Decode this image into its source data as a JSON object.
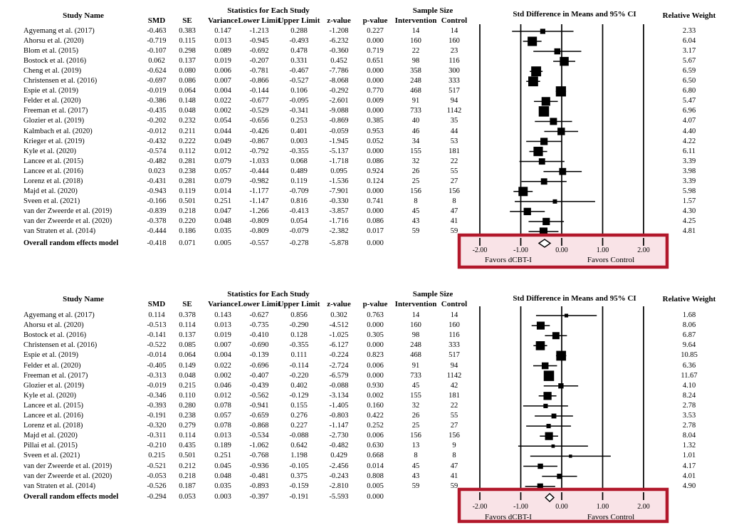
{
  "chart_data": [
    {
      "type": "scatter",
      "subtype": "forest-plot",
      "headers": {
        "study": "Study Name",
        "stats_group": "Statistics for Each Study",
        "sample_group": "Sample Size",
        "plot": "Std Difference in Means and 95% CI",
        "weight": "Relative Weight"
      },
      "columns": [
        "SMD",
        "SE",
        "Variance",
        "Lower Limit",
        "Upper Limit",
        "z-value",
        "p-value"
      ],
      "sample_columns": [
        "Intervention",
        "Control"
      ],
      "axis": {
        "range": [
          -2,
          2
        ],
        "ticks": [
          "-2.00",
          "-1.00",
          "0.00",
          "1.00",
          "2.00"
        ],
        "favors_left": "Favors dCBT-I",
        "favors_right": "Favors Control",
        "grid": true
      },
      "row_fields": [
        "study",
        "smd",
        "se",
        "variance",
        "lower",
        "upper",
        "z",
        "p",
        "intervention",
        "control",
        "weight"
      ],
      "rows": [
        [
          "Agyemang et al. (2017)",
          "-0.463",
          "0.383",
          "0.147",
          "-1.213",
          "0.288",
          "-1.208",
          "0.227",
          "14",
          "14",
          "2.33"
        ],
        [
          "Ahorsu et al. (2020)",
          "-0.719",
          "0.115",
          "0.013",
          "-0.945",
          "-0.493",
          "-6.232",
          "0.000",
          "160",
          "160",
          "6.04"
        ],
        [
          "Blom et al. (2015)",
          "-0.107",
          "0.298",
          "0.089",
          "-0.692",
          "0.478",
          "-0.360",
          "0.719",
          "22",
          "23",
          "3.17"
        ],
        [
          "Bostock et al. (2016)",
          "0.062",
          "0.137",
          "0.019",
          "-0.207",
          "0.331",
          "0.452",
          "0.651",
          "98",
          "116",
          "5.67"
        ],
        [
          "Cheng et al. (2019)",
          "-0.624",
          "0.080",
          "0.006",
          "-0.781",
          "-0.467",
          "-7.786",
          "0.000",
          "358",
          "300",
          "6.59"
        ],
        [
          "Christensen et al. (2016)",
          "-0.697",
          "0.086",
          "0.007",
          "-0.866",
          "-0.527",
          "-8.068",
          "0.000",
          "248",
          "333",
          "6.50"
        ],
        [
          "Espie et al. (2019)",
          "-0.019",
          "0.064",
          "0.004",
          "-0.144",
          "0.106",
          "-0.292",
          "0.770",
          "468",
          "517",
          "6.80"
        ],
        [
          "Felder et al. (2020)",
          "-0.386",
          "0.148",
          "0.022",
          "-0.677",
          "-0.095",
          "-2.601",
          "0.009",
          "91",
          "94",
          "5.47"
        ],
        [
          "Freeman et al. (2017)",
          "-0.435",
          "0.048",
          "0.002",
          "-0.529",
          "-0.341",
          "-9.088",
          "0.000",
          "733",
          "1142",
          "6.96"
        ],
        [
          "Glozier et al. (2019)",
          "-0.202",
          "0.232",
          "0.054",
          "-0.656",
          "0.253",
          "-0.869",
          "0.385",
          "40",
          "35",
          "4.07"
        ],
        [
          "Kalmbach et al. (2020)",
          "-0.012",
          "0.211",
          "0.044",
          "-0.426",
          "0.401",
          "-0.059",
          "0.953",
          "46",
          "44",
          "4.40"
        ],
        [
          "Krieger et al. (2019)",
          "-0.432",
          "0.222",
          "0.049",
          "-0.867",
          "0.003",
          "-1.945",
          "0.052",
          "34",
          "53",
          "4.22"
        ],
        [
          "Kyle et al. (2020)",
          "-0.574",
          "0.112",
          "0.012",
          "-0.792",
          "-0.355",
          "-5.137",
          "0.000",
          "155",
          "181",
          "6.11"
        ],
        [
          "Lancee et al. (2015)",
          "-0.482",
          "0.281",
          "0.079",
          "-1.033",
          "0.068",
          "-1.718",
          "0.086",
          "32",
          "22",
          "3.39"
        ],
        [
          "Lancee et al. (2016)",
          "0.023",
          "0.238",
          "0.057",
          "-0.444",
          "0.489",
          "0.095",
          "0.924",
          "26",
          "55",
          "3.98"
        ],
        [
          "Lorenz et al. (2018)",
          "-0.431",
          "0.281",
          "0.079",
          "-0.982",
          "0.119",
          "-1.536",
          "0.124",
          "25",
          "27",
          "3.39"
        ],
        [
          "Majd et al. (2020)",
          "-0.943",
          "0.119",
          "0.014",
          "-1.177",
          "-0.709",
          "-7.901",
          "0.000",
          "156",
          "156",
          "5.98"
        ],
        [
          "Sveen et al. (2021)",
          "-0.166",
          "0.501",
          "0.251",
          "-1.147",
          "0.816",
          "-0.330",
          "0.741",
          "8",
          "8",
          "1.57"
        ],
        [
          "van der Zweerde et al. (2019)",
          "-0.839",
          "0.218",
          "0.047",
          "-1.266",
          "-0.413",
          "-3.857",
          "0.000",
          "45",
          "47",
          "4.30"
        ],
        [
          "van der Zweerde et al. (2020)",
          "-0.378",
          "0.220",
          "0.048",
          "-0.809",
          "0.054",
          "-1.716",
          "0.086",
          "43",
          "41",
          "4.25"
        ],
        [
          "van Straten et al. (2014)",
          "-0.444",
          "0.186",
          "0.035",
          "-0.809",
          "-0.079",
          "-2.382",
          "0.017",
          "59",
          "59",
          "4.81"
        ]
      ],
      "overall": [
        "Overall random effects model",
        "-0.418",
        "0.071",
        "0.005",
        "-0.557",
        "-0.278",
        "-5.878",
        "0.000"
      ]
    },
    {
      "type": "scatter",
      "subtype": "forest-plot",
      "headers": {
        "study": "Study Name",
        "stats_group": "Statistics for Each Study",
        "sample_group": "Sample Size",
        "plot": "Std Difference in Means and 95% CI",
        "weight": "Relative Weight"
      },
      "columns": [
        "SMD",
        "SE",
        "Variance",
        "Lower Limit",
        "Upper Limit",
        "z-value",
        "p-value"
      ],
      "sample_columns": [
        "Intervention",
        "Control"
      ],
      "axis": {
        "range": [
          -2,
          2
        ],
        "ticks": [
          "-2.00",
          "-1.00",
          "0.00",
          "1.00",
          "2.00"
        ],
        "favors_left": "Favors dCBT-I",
        "favors_right": "Favors Control",
        "grid": true
      },
      "row_fields": [
        "study",
        "smd",
        "se",
        "variance",
        "lower",
        "upper",
        "z",
        "p",
        "intervention",
        "control",
        "weight"
      ],
      "rows": [
        [
          "Agyemang et al. (2017)",
          "0.114",
          "0.378",
          "0.143",
          "-0.627",
          "0.856",
          "0.302",
          "0.763",
          "14",
          "14",
          "1.68"
        ],
        [
          "Ahorsu et al. (2020)",
          "-0.513",
          "0.114",
          "0.013",
          "-0.735",
          "-0.290",
          "-4.512",
          "0.000",
          "160",
          "160",
          "8.06"
        ],
        [
          "Bostock et al. (2016)",
          "-0.141",
          "0.137",
          "0.019",
          "-0.410",
          "0.128",
          "-1.025",
          "0.305",
          "98",
          "116",
          "6.87"
        ],
        [
          "Christensen et al. (2016)",
          "-0.522",
          "0.085",
          "0.007",
          "-0.690",
          "-0.355",
          "-6.127",
          "0.000",
          "248",
          "333",
          "9.64"
        ],
        [
          "Espie et al. (2019)",
          "-0.014",
          "0.064",
          "0.004",
          "-0.139",
          "0.111",
          "-0.224",
          "0.823",
          "468",
          "517",
          "10.85"
        ],
        [
          "Felder et al. (2020)",
          "-0.405",
          "0.149",
          "0.022",
          "-0.696",
          "-0.114",
          "-2.724",
          "0.006",
          "91",
          "94",
          "6.36"
        ],
        [
          "Freeman et al. (2017)",
          "-0.313",
          "0.048",
          "0.002",
          "-0.407",
          "-0.220",
          "-6.579",
          "0.000",
          "733",
          "1142",
          "11.67"
        ],
        [
          "Glozier et al. (2019)",
          "-0.019",
          "0.215",
          "0.046",
          "-0.439",
          "0.402",
          "-0.088",
          "0.930",
          "45",
          "42",
          "4.10"
        ],
        [
          "Kyle et al. (2020)",
          "-0.346",
          "0.110",
          "0.012",
          "-0.562",
          "-0.129",
          "-3.134",
          "0.002",
          "155",
          "181",
          "8.24"
        ],
        [
          "Lancee et al. (2015)",
          "-0.393",
          "0.280",
          "0.078",
          "-0.941",
          "0.155",
          "-1.405",
          "0.160",
          "32",
          "22",
          "2.78"
        ],
        [
          "Lancee et al. (2016)",
          "-0.191",
          "0.238",
          "0.057",
          "-0.659",
          "0.276",
          "-0.803",
          "0.422",
          "26",
          "55",
          "3.53"
        ],
        [
          "Lorenz et al. (2018)",
          "-0.320",
          "0.279",
          "0.078",
          "-0.868",
          "0.227",
          "-1.147",
          "0.252",
          "25",
          "27",
          "2.78"
        ],
        [
          "Majd et al. (2020)",
          "-0.311",
          "0.114",
          "0.013",
          "-0.534",
          "-0.088",
          "-2.730",
          "0.006",
          "156",
          "156",
          "8.04"
        ],
        [
          "Pillai et al. (2015)",
          "-0.210",
          "0.435",
          "0.189",
          "-1.062",
          "0.642",
          "-0.482",
          "0.630",
          "13",
          "9",
          "1.32"
        ],
        [
          "Sveen et al. (2021)",
          "0.215",
          "0.501",
          "0.251",
          "-0.768",
          "1.198",
          "0.429",
          "0.668",
          "8",
          "8",
          "1.01"
        ],
        [
          "van der Zweerde et al. (2019)",
          "-0.521",
          "0.212",
          "0.045",
          "-0.936",
          "-0.105",
          "-2.456",
          "0.014",
          "45",
          "47",
          "4.17"
        ],
        [
          "van der Zweerde et al. (2020)",
          "-0.053",
          "0.218",
          "0.048",
          "-0.481",
          "0.375",
          "-0.243",
          "0.808",
          "43",
          "41",
          "4.01"
        ],
        [
          "van Straten et al. (2014)",
          "-0.526",
          "0.187",
          "0.035",
          "-0.893",
          "-0.159",
          "-2.810",
          "0.005",
          "59",
          "59",
          "4.90"
        ]
      ],
      "overall": [
        "Overall random effects model",
        "-0.294",
        "0.053",
        "0.003",
        "-0.397",
        "-0.191",
        "-5.593",
        "0.000"
      ]
    }
  ],
  "highlight": {
    "border_color": "#B2182B",
    "fill_color": "#F9E3E7"
  },
  "plot_style": {
    "ink_color": "#000000",
    "background": "#FFFFFF"
  }
}
